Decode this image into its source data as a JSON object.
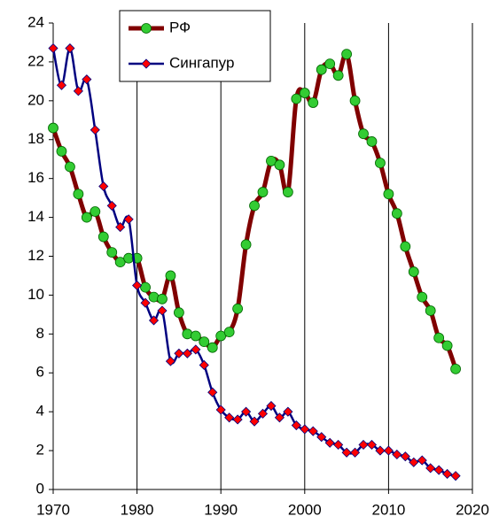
{
  "chart_data": {
    "type": "line",
    "x": [
      1970,
      1971,
      1972,
      1973,
      1974,
      1975,
      1976,
      1977,
      1978,
      1979,
      1980,
      1981,
      1982,
      1983,
      1984,
      1985,
      1986,
      1987,
      1988,
      1989,
      1990,
      1991,
      1992,
      1993,
      1994,
      1995,
      1996,
      1997,
      1998,
      1999,
      2000,
      2001,
      2002,
      2003,
      2004,
      2005,
      2006,
      2007,
      2008,
      2009,
      2010,
      2011,
      2012,
      2013,
      2014,
      2015,
      2016,
      2017,
      2018
    ],
    "series": [
      {
        "name": "РФ",
        "color": "#800000",
        "marker_color": "#33cc33",
        "marker": "circle",
        "values": [
          18.6,
          17.4,
          16.6,
          15.2,
          14.0,
          14.3,
          13.0,
          12.2,
          11.7,
          11.9,
          11.9,
          10.4,
          9.9,
          9.8,
          11.0,
          9.1,
          8.0,
          7.9,
          7.6,
          7.3,
          7.9,
          8.1,
          9.3,
          12.6,
          14.6,
          15.3,
          16.9,
          16.7,
          15.3,
          20.1,
          20.4,
          19.9,
          21.6,
          21.9,
          21.3,
          22.4,
          20.0,
          18.3,
          17.9,
          16.8,
          15.2,
          14.2,
          12.5,
          11.2,
          9.9,
          9.2,
          7.8,
          7.4,
          6.2
        ]
      },
      {
        "name": "Сингапур",
        "color": "#000080",
        "marker_color": "#ff0000",
        "marker": "diamond",
        "values": [
          22.7,
          20.8,
          22.7,
          20.5,
          21.1,
          18.5,
          15.6,
          14.6,
          13.5,
          13.9,
          10.5,
          9.6,
          8.7,
          9.2,
          6.6,
          7.0,
          7.0,
          7.2,
          6.4,
          5.0,
          4.1,
          3.7,
          3.6,
          4.0,
          3.5,
          3.9,
          4.3,
          3.7,
          4.0,
          3.3,
          3.1,
          3.0,
          2.7,
          2.4,
          2.3,
          1.9,
          1.9,
          2.3,
          2.3,
          2.0,
          2.0,
          1.8,
          1.7,
          1.4,
          1.5,
          1.1,
          1.0,
          0.8,
          0.7
        ]
      }
    ],
    "xlim": [
      1970,
      2020
    ],
    "xticks": [
      1970,
      1980,
      1990,
      2000,
      2010,
      2020
    ],
    "ylim": [
      0,
      24
    ],
    "yticks": [
      0,
      2,
      4,
      6,
      8,
      10,
      12,
      14,
      16,
      18,
      20,
      22,
      24
    ],
    "grid": "x",
    "legend": "upper center"
  }
}
